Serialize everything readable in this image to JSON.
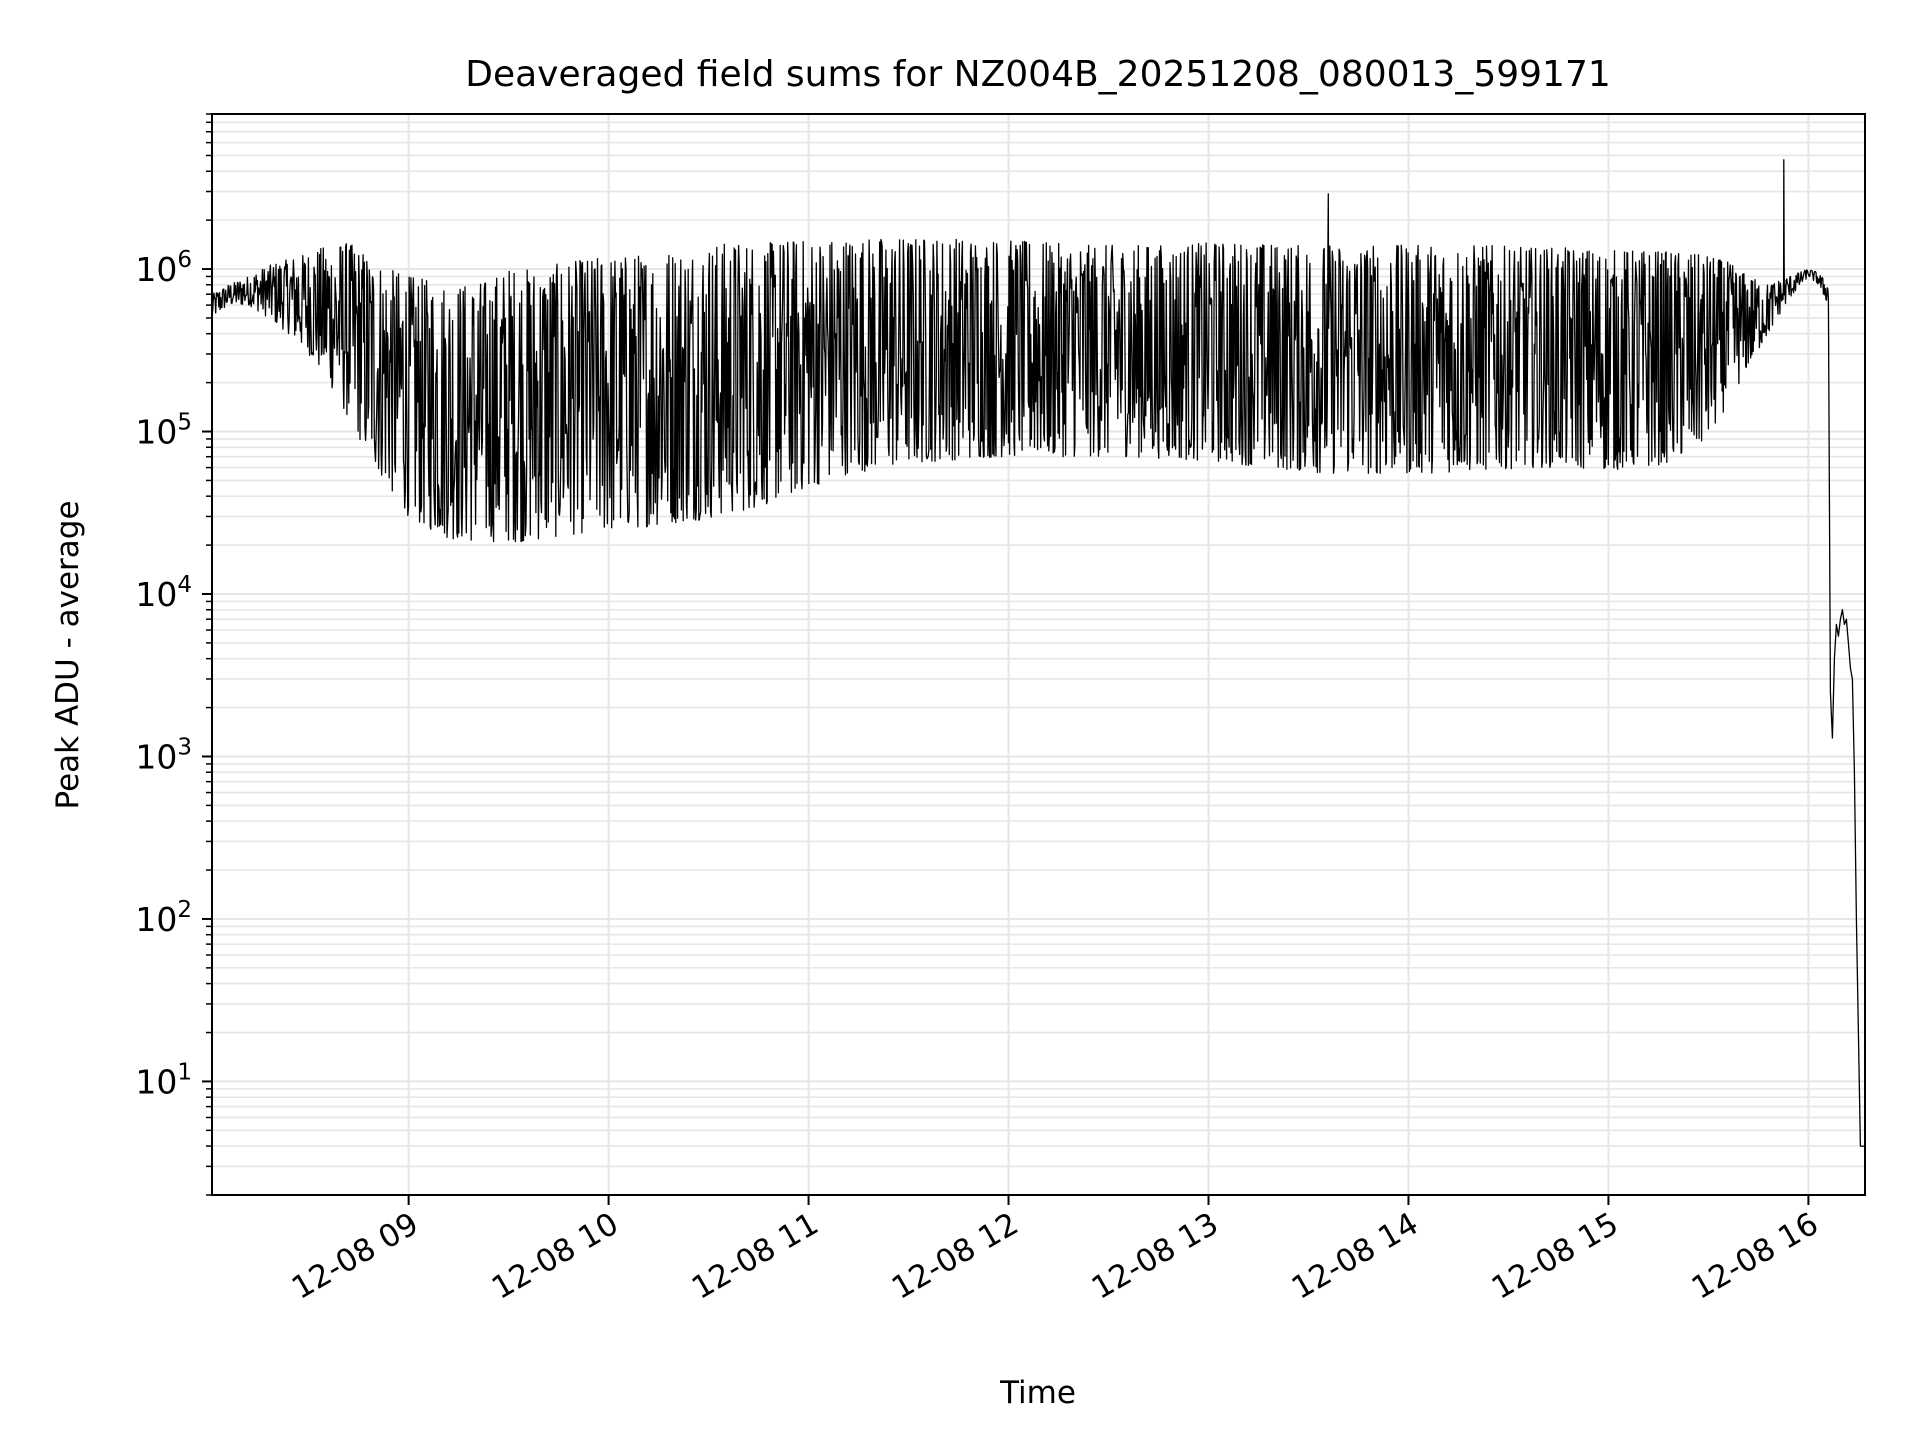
{
  "colors": {
    "background": "#ffffff",
    "line": "#000000",
    "grid": "#e6e6e6",
    "axes": "#000000"
  },
  "chart_data": {
    "type": "line",
    "title": "Deaveraged field sums for NZ004B_20251208_080013_599171",
    "xlabel": "Time",
    "ylabel": "Peak ADU - average",
    "yscale": "log",
    "grid": true,
    "legend": "none",
    "xlim": [
      8.0167,
      16.283
    ],
    "ylim": [
      2,
      9000000
    ],
    "x_ticks": [
      {
        "label": "12-08 09",
        "value": 9
      },
      {
        "label": "12-08 10",
        "value": 10
      },
      {
        "label": "12-08 11",
        "value": 11
      },
      {
        "label": "12-08 12",
        "value": 12
      },
      {
        "label": "12-08 13",
        "value": 13
      },
      {
        "label": "12-08 14",
        "value": 14
      },
      {
        "label": "12-08 15",
        "value": 15
      },
      {
        "label": "12-08 16",
        "value": 16
      }
    ],
    "y_ticks": [
      {
        "base": "10",
        "exp": "1",
        "value": 10
      },
      {
        "base": "10",
        "exp": "2",
        "value": 100
      },
      {
        "base": "10",
        "exp": "3",
        "value": 1000
      },
      {
        "base": "10",
        "exp": "4",
        "value": 10000
      },
      {
        "base": "10",
        "exp": "5",
        "value": 100000
      },
      {
        "base": "10",
        "exp": "6",
        "value": 1000000
      }
    ],
    "envelope": {
      "x": [
        8.0167,
        8.1,
        8.2,
        8.3,
        8.4,
        8.5,
        8.6,
        8.7,
        8.8,
        8.9,
        9.0,
        9.1,
        9.2,
        9.3,
        9.4,
        9.5,
        9.6,
        9.7,
        9.8,
        9.9,
        10.0,
        10.1,
        10.2,
        10.3,
        10.4,
        10.5,
        10.6,
        10.7,
        10.8,
        10.9,
        11.0,
        11.2,
        11.4,
        11.6,
        11.8,
        12.0,
        12.2,
        12.4,
        12.6,
        12.8,
        13.0,
        13.2,
        13.4,
        13.6,
        13.8,
        14.0,
        14.2,
        14.4,
        14.6,
        14.8,
        15.0,
        15.2,
        15.4,
        15.5,
        15.6,
        15.7,
        15.8,
        15.9,
        16.0,
        16.05,
        16.1
      ],
      "upper": [
        700000,
        800000,
        900000,
        1050000,
        1150000,
        1250000,
        1400000,
        1450000,
        1200000,
        1000000,
        900000,
        850000,
        800000,
        800000,
        850000,
        1000000,
        1000000,
        1050000,
        1100000,
        1150000,
        1200000,
        1200000,
        1250000,
        1300000,
        1350000,
        1400000,
        1450000,
        1450000,
        1450000,
        1500000,
        1500000,
        1550000,
        1550000,
        1550000,
        1550000,
        1500000,
        1450000,
        1400000,
        1400000,
        1400000,
        1450000,
        1450000,
        1400000,
        1400000,
        1400000,
        1400000,
        1400000,
        1400000,
        1350000,
        1350000,
        1300000,
        1300000,
        1250000,
        1200000,
        1100000,
        900000,
        800000,
        900000,
        1000000,
        950000,
        800000
      ],
      "lower": [
        500000,
        600000,
        600000,
        500000,
        400000,
        300000,
        200000,
        120000,
        70000,
        45000,
        30000,
        25000,
        22000,
        21000,
        21000,
        21000,
        21000,
        22000,
        23000,
        24000,
        24000,
        25000,
        26000,
        27000,
        28000,
        29000,
        31000,
        33000,
        36000,
        40000,
        45000,
        55000,
        60000,
        65000,
        68000,
        70000,
        70000,
        70000,
        70000,
        68000,
        66000,
        62000,
        58000,
        55000,
        55000,
        55000,
        56000,
        58000,
        60000,
        60000,
        58000,
        60000,
        70000,
        90000,
        150000,
        250000,
        400000,
        650000,
        900000,
        800000,
        600000
      ]
    },
    "spikes": [
      {
        "x": 13.599,
        "y": 2900000
      },
      {
        "x": 15.877,
        "y": 4700000
      }
    ],
    "tail": {
      "x": [
        15.92,
        15.96,
        16.0,
        16.03,
        16.06,
        16.08,
        16.09,
        16.1,
        16.11,
        16.12,
        16.13,
        16.14,
        16.15,
        16.16,
        16.17,
        16.18,
        16.19,
        16.2,
        16.21,
        16.22,
        16.23,
        16.24,
        16.25,
        16.26,
        16.265,
        16.28
      ],
      "y": [
        900000,
        1050000,
        1000000,
        750000,
        400000,
        100000,
        30000,
        5000,
        2500,
        1300,
        4000,
        6500,
        5500,
        7000,
        8000,
        6500,
        7000,
        5000,
        3500,
        3000,
        800,
        100,
        20,
        4,
        4,
        4
      ]
    }
  }
}
